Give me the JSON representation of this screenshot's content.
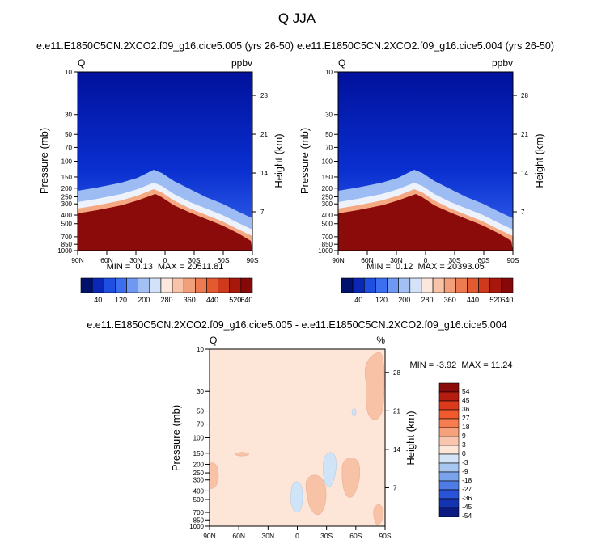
{
  "title": "Q JJA",
  "colors": {
    "background": "#ffffff",
    "sky_blue": "#00119c",
    "deep_red": "#8b0a0a",
    "diff_bg": "#fde6d8",
    "diff_pos": "#f7c2a6",
    "diff_neg": "#cfe4f7"
  },
  "chart_data": [
    {
      "type": "heatmap",
      "id": "panel_a",
      "subtitle": "e.e11.E1850C5CN.2XCO2.f09_g16.cice5.005 (yrs 26-50)",
      "left_label": "Q",
      "right_label": "ppbv",
      "ylabel": "Pressure (mb)",
      "ylabel_right": "Height (km)",
      "x_ticks": [
        "90N",
        "60N",
        "30N",
        "0",
        "30S",
        "60S",
        "90S"
      ],
      "y_ticks": [
        "10",
        "30",
        "50",
        "70",
        "100",
        "150",
        "200",
        "250",
        "300",
        "400",
        "500",
        "700",
        "850",
        "1000"
      ],
      "height_ticks": [
        "28",
        "21",
        "14",
        "7"
      ],
      "stats": "MIN =  0.13  MAX = 20511.81",
      "tropopause_mb": [
        [
          90,
          245
        ],
        [
          60,
          225
        ],
        [
          30,
          190
        ],
        [
          10,
          158
        ],
        [
          0,
          190
        ],
        [
          -20,
          235
        ],
        [
          -40,
          290
        ],
        [
          -60,
          335
        ],
        [
          -80,
          420
        ],
        [
          -90,
          480
        ]
      ]
    },
    {
      "type": "heatmap",
      "id": "panel_b",
      "subtitle": "e.e11.E1850C5CN.2XCO2.f09_g16.cice5.004 (yrs 26-50)",
      "left_label": "Q",
      "right_label": "ppbv",
      "ylabel": "Pressure (mb)",
      "ylabel_right": "Height (km)",
      "x_ticks": [
        "90N",
        "60N",
        "30N",
        "0",
        "30S",
        "60S",
        "90S"
      ],
      "y_ticks": [
        "10",
        "30",
        "50",
        "70",
        "100",
        "150",
        "200",
        "250",
        "300",
        "400",
        "500",
        "700",
        "850",
        "1000"
      ],
      "height_ticks": [
        "28",
        "21",
        "14",
        "7"
      ],
      "stats": "MIN =  0.12  MAX = 20393.05",
      "tropopause_mb": [
        [
          90,
          245
        ],
        [
          60,
          225
        ],
        [
          30,
          190
        ],
        [
          10,
          158
        ],
        [
          0,
          190
        ],
        [
          -20,
          235
        ],
        [
          -40,
          290
        ],
        [
          -60,
          335
        ],
        [
          -80,
          420
        ],
        [
          -90,
          480
        ]
      ]
    },
    {
      "type": "heatmap",
      "id": "panel_diff",
      "subtitle": "e.e11.E1850C5CN.2XCO2.f09_g16.cice5.005 - e.e11.E1850C5CN.2XCO2.f09_g16.cice5.004",
      "left_label": "Q",
      "right_label": "%",
      "ylabel": "Pressure (mb)",
      "ylabel_right": "Height (km)",
      "x_ticks": [
        "90N",
        "60N",
        "30N",
        "0",
        "30S",
        "60S",
        "90S"
      ],
      "y_ticks": [
        "10",
        "30",
        "50",
        "70",
        "100",
        "150",
        "200",
        "250",
        "300",
        "400",
        "500",
        "700",
        "850",
        "1000"
      ],
      "height_ticks": [
        "28",
        "21",
        "14",
        "7"
      ],
      "stats": "MIN = -3.92  MAX = 11.24"
    }
  ],
  "colorbar_top": {
    "labels": [
      "40",
      "120",
      "200",
      "280",
      "360",
      "440",
      "520",
      "640"
    ],
    "colors": [
      "#00126b",
      "#0a28b5",
      "#1f4fe0",
      "#3b6ff0",
      "#6e98f2",
      "#a3c0f5",
      "#d3e2f8",
      "#fbe7dc",
      "#f7c3a9",
      "#f2a07c",
      "#ed7b52",
      "#e35a30",
      "#cf3a1c",
      "#a8170b",
      "#870808"
    ]
  },
  "colorbar_diff": {
    "labels": [
      "54",
      "45",
      "36",
      "27",
      "18",
      "9",
      "3",
      "0",
      "-3",
      "-9",
      "-18",
      "-27",
      "-36",
      "-45",
      "-54"
    ],
    "colors": [
      "#8b0a0a",
      "#b51d10",
      "#dc3a1c",
      "#f05a2d",
      "#f57d4f",
      "#f7a07c",
      "#f9c6ad",
      "#fde6d8",
      "#d2e4f5",
      "#a7c6f0",
      "#7aa3ec",
      "#4f7be5",
      "#2a54d8",
      "#1434b2",
      "#0a1a80"
    ]
  }
}
